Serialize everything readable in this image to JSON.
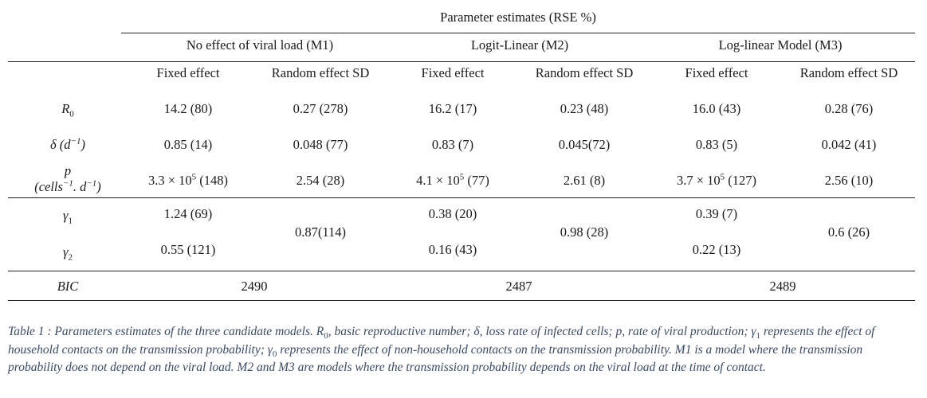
{
  "header": {
    "group_title": "Parameter estimates (RSE %)",
    "models": [
      {
        "label": "No effect of viral load (M1)"
      },
      {
        "label": "Logit-Linear (M2)"
      },
      {
        "label": "Log-linear Model (M3)"
      }
    ],
    "subcols": {
      "fixed": "Fixed effect",
      "random": "Random effect SD"
    }
  },
  "rows": {
    "r0": {
      "label": "R",
      "label_sub": "0",
      "m1_fixed": "14.2 (80)",
      "m1_random": "0.27 (278)",
      "m2_fixed": "16.2 (17)",
      "m2_random": "0.23 (48)",
      "m3_fixed": "16.0 (43)",
      "m3_random": "0.28 (76)"
    },
    "delta": {
      "label": "δ (d",
      "label_sup": "−1",
      "label_tail": ")",
      "m1_fixed": "0.85 (14)",
      "m1_random": "0.048 (77)",
      "m2_fixed": "0.83 (7)",
      "m2_random": "0.045(72)",
      "m3_fixed": "0.83 (5)",
      "m3_random": "0.042 (41)"
    },
    "p": {
      "label": "p",
      "label_unit": "(cells",
      "label_unit_sup": "−1",
      "label_unit_mid": ". d",
      "label_unit_sup2": "−1",
      "label_unit_tail": ")",
      "m1_fixed_base": "3.3 × 10",
      "m1_fixed_exp": "5",
      "m1_fixed_tail": " (148)",
      "m1_random": "2.54 (28)",
      "m2_fixed_base": "4.1 × 10",
      "m2_fixed_exp": "5",
      "m2_fixed_tail": " (77)",
      "m2_random": "2.61 (8)",
      "m3_fixed_base": "3.7 × 10",
      "m3_fixed_exp": "5",
      "m3_fixed_tail": " (127)",
      "m3_random": "2.56 (10)"
    },
    "gamma1": {
      "label": "γ",
      "label_sub": "1",
      "m1_fixed": "1.24 (69)",
      "m2_fixed": "0.38 (20)",
      "m3_fixed": "0.39 (7)"
    },
    "gamma2": {
      "label": "γ",
      "label_sub": "2",
      "m1_fixed": "0.55 (121)",
      "m2_fixed": "0.16 (43)",
      "m3_fixed": "0.22 (13)"
    },
    "gamma_random": {
      "m1": "0.87(114)",
      "m2": "0.98 (28)",
      "m3": "0.6 (26)"
    },
    "bic": {
      "label": "BIC",
      "m1": "2490",
      "m2": "2487",
      "m3": "2489"
    }
  },
  "caption": {
    "text_a": "Table 1 : Parameters estimates of the three candidate models. R",
    "sub_a": "0",
    "text_b": ", basic reproductive number; δ, loss rate of infected cells; p, rate of viral production; γ",
    "sub_b": "1",
    "text_c": " represents the effect of household contacts on the transmission probability; γ",
    "sub_c": "0",
    "text_d": " represents the effect of non-household contacts on the transmission probability. M1 is a model where the transmission probability does not depend on the viral load. M2 and M3 are models where the transmission probability depends on the viral load at the time of contact."
  }
}
